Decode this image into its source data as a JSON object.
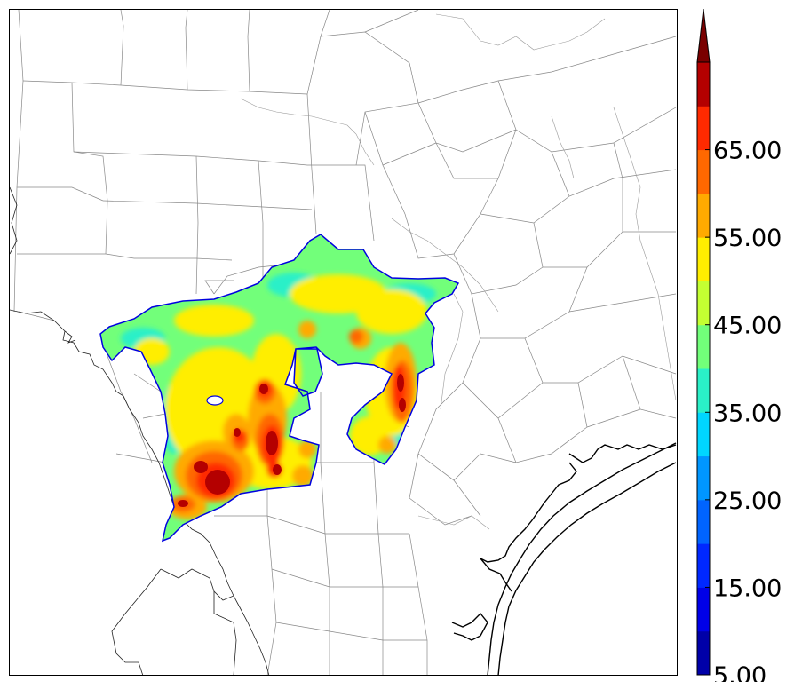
{
  "colorbar": {
    "levels": [
      5,
      10,
      15,
      20,
      25,
      30,
      35,
      40,
      45,
      50,
      55,
      60,
      65,
      70
    ],
    "colors": [
      "#0000a8",
      "#0000e8",
      "#0028ff",
      "#0064ff",
      "#0096ff",
      "#00d6ff",
      "#2af0c8",
      "#72ff7a",
      "#c4ff32",
      "#ffee00",
      "#ffaa00",
      "#ff6800",
      "#ff2a00",
      "#b40000"
    ],
    "extend_color": "#7a0000",
    "tick_labels": [
      "5.00",
      "15.00",
      "25.00",
      "35.00",
      "45.00",
      "55.00",
      "65.00"
    ]
  },
  "map": {
    "boundary_color": "#888888",
    "coast_color": "#000000",
    "field_outline_color": "#0000e0"
  }
}
